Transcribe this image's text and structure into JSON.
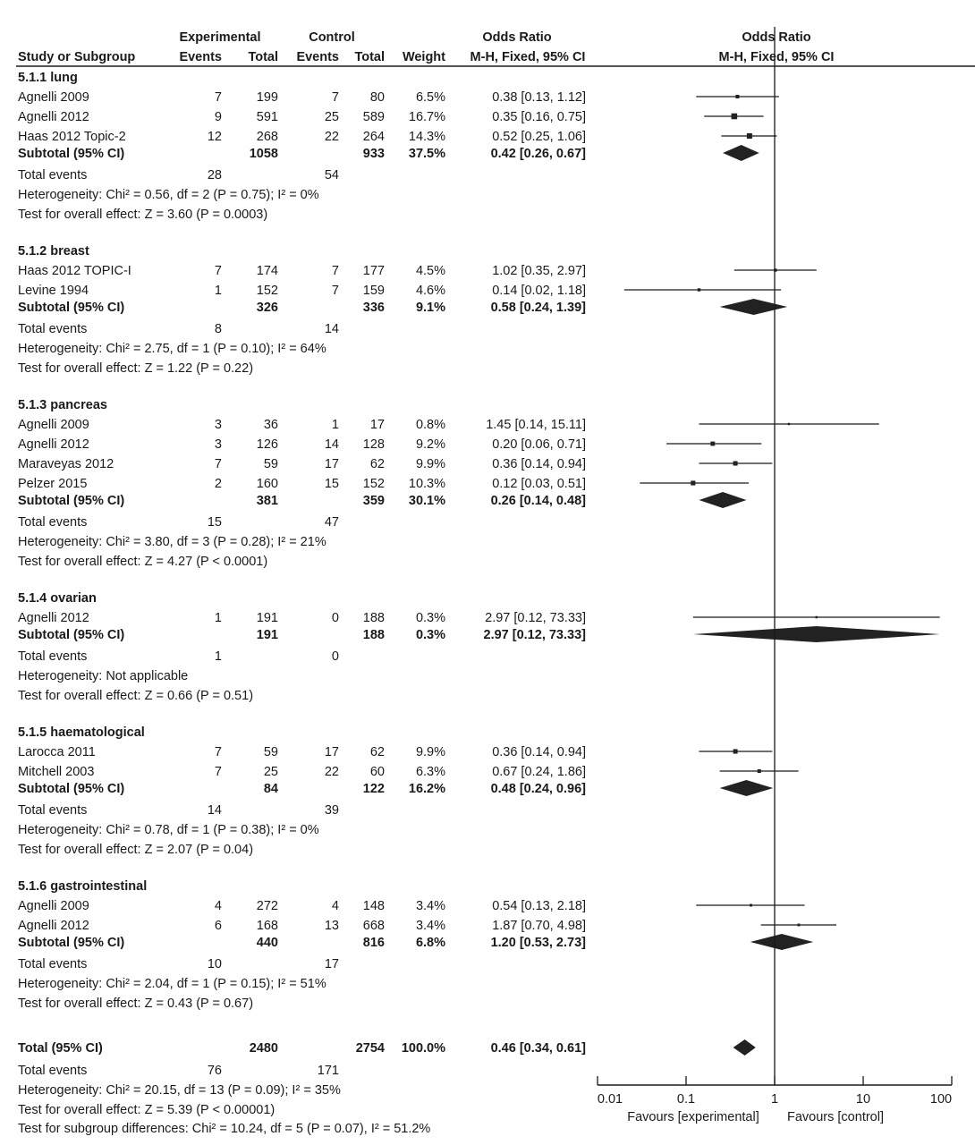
{
  "header": {
    "study_col": "Study or Subgroup",
    "experimental": "Experimental",
    "control": "Control",
    "events": "Events",
    "total": "Total",
    "weight": "Weight",
    "or_title": "Odds Ratio",
    "or_method": "M-H, Fixed, 95% CI",
    "plot_title": "Odds Ratio",
    "plot_method": "M-H, Fixed, 95% CI"
  },
  "chart_data": {
    "type": "forest",
    "x_scale": "log",
    "xlim": [
      0.01,
      100
    ],
    "x_ticks": [
      "0.01",
      "0.1",
      "1",
      "10",
      "100"
    ],
    "x_tick_values": [
      0.01,
      0.1,
      1,
      10,
      100
    ],
    "reference_line": 1,
    "favours_left": "Favours [experimental]",
    "favours_right": "Favours [control]",
    "groups": [
      {
        "title": "5.1.1 lung",
        "studies": [
          {
            "name": "Agnelli 2009",
            "exp_events": "7",
            "exp_total": "199",
            "ctl_events": "7",
            "ctl_total": "80",
            "weight": "6.5%",
            "or_text": "0.38 [0.13, 1.12]",
            "or": 0.38,
            "lo": 0.13,
            "hi": 1.12
          },
          {
            "name": "Agnelli 2012",
            "exp_events": "9",
            "exp_total": "591",
            "ctl_events": "25",
            "ctl_total": "589",
            "weight": "16.7%",
            "or_text": "0.35 [0.16, 0.75]",
            "or": 0.35,
            "lo": 0.16,
            "hi": 0.75
          },
          {
            "name": "Haas 2012 Topic-2",
            "exp_events": "12",
            "exp_total": "268",
            "ctl_events": "22",
            "ctl_total": "264",
            "weight": "14.3%",
            "or_text": "0.52 [0.25, 1.06]",
            "or": 0.52,
            "lo": 0.25,
            "hi": 1.06
          }
        ],
        "subtotal": {
          "label": "Subtotal (95% CI)",
          "exp_total": "1058",
          "ctl_total": "933",
          "weight": "37.5%",
          "or_text": "0.42 [0.26, 0.67]",
          "or": 0.42,
          "lo": 0.26,
          "hi": 0.67
        },
        "total_events": {
          "label": "Total events",
          "exp": "28",
          "ctl": "54"
        },
        "heterogeneity": "Heterogeneity: Chi² = 0.56, df = 2 (P = 0.75); I² = 0%",
        "overall_effect": "Test for overall effect: Z = 3.60 (P = 0.0003)"
      },
      {
        "title": "5.1.2 breast",
        "studies": [
          {
            "name": "Haas 2012 TOPIC-I",
            "exp_events": "7",
            "exp_total": "174",
            "ctl_events": "7",
            "ctl_total": "177",
            "weight": "4.5%",
            "or_text": "1.02 [0.35, 2.97]",
            "or": 1.02,
            "lo": 0.35,
            "hi": 2.97
          },
          {
            "name": "Levine 1994",
            "exp_events": "1",
            "exp_total": "152",
            "ctl_events": "7",
            "ctl_total": "159",
            "weight": "4.6%",
            "or_text": "0.14 [0.02, 1.18]",
            "or": 0.14,
            "lo": 0.02,
            "hi": 1.18
          }
        ],
        "subtotal": {
          "label": "Subtotal (95% CI)",
          "exp_total": "326",
          "ctl_total": "336",
          "weight": "9.1%",
          "or_text": "0.58 [0.24, 1.39]",
          "or": 0.58,
          "lo": 0.24,
          "hi": 1.39
        },
        "total_events": {
          "label": "Total events",
          "exp": "8",
          "ctl": "14"
        },
        "heterogeneity": "Heterogeneity: Chi² = 2.75, df = 1 (P = 0.10); I² = 64%",
        "overall_effect": "Test for overall effect: Z = 1.22 (P = 0.22)"
      },
      {
        "title": "5.1.3 pancreas",
        "studies": [
          {
            "name": "Agnelli 2009",
            "exp_events": "3",
            "exp_total": "36",
            "ctl_events": "1",
            "ctl_total": "17",
            "weight": "0.8%",
            "or_text": "1.45 [0.14, 15.11]",
            "or": 1.45,
            "lo": 0.14,
            "hi": 15.11
          },
          {
            "name": "Agnelli 2012",
            "exp_events": "3",
            "exp_total": "126",
            "ctl_events": "14",
            "ctl_total": "128",
            "weight": "9.2%",
            "or_text": "0.20 [0.06, 0.71]",
            "or": 0.2,
            "lo": 0.06,
            "hi": 0.71
          },
          {
            "name": "Maraveyas 2012",
            "exp_events": "7",
            "exp_total": "59",
            "ctl_events": "17",
            "ctl_total": "62",
            "weight": "9.9%",
            "or_text": "0.36 [0.14, 0.94]",
            "or": 0.36,
            "lo": 0.14,
            "hi": 0.94
          },
          {
            "name": "Pelzer 2015",
            "exp_events": "2",
            "exp_total": "160",
            "ctl_events": "15",
            "ctl_total": "152",
            "weight": "10.3%",
            "or_text": "0.12 [0.03, 0.51]",
            "or": 0.12,
            "lo": 0.03,
            "hi": 0.51
          }
        ],
        "subtotal": {
          "label": "Subtotal (95% CI)",
          "exp_total": "381",
          "ctl_total": "359",
          "weight": "30.1%",
          "or_text": "0.26 [0.14, 0.48]",
          "or": 0.26,
          "lo": 0.14,
          "hi": 0.48
        },
        "total_events": {
          "label": "Total events",
          "exp": "15",
          "ctl": "47"
        },
        "heterogeneity": "Heterogeneity: Chi² = 3.80, df = 3 (P = 0.28); I² = 21%",
        "overall_effect": "Test for overall effect: Z = 4.27 (P < 0.0001)"
      },
      {
        "title": "5.1.4 ovarian",
        "studies": [
          {
            "name": "Agnelli 2012",
            "exp_events": "1",
            "exp_total": "191",
            "ctl_events": "0",
            "ctl_total": "188",
            "weight": "0.3%",
            "or_text": "2.97 [0.12, 73.33]",
            "or": 2.97,
            "lo": 0.12,
            "hi": 73.33
          }
        ],
        "subtotal": {
          "label": "Subtotal (95% CI)",
          "exp_total": "191",
          "ctl_total": "188",
          "weight": "0.3%",
          "or_text": "2.97 [0.12, 73.33]",
          "or": 2.97,
          "lo": 0.12,
          "hi": 73.33
        },
        "total_events": {
          "label": "Total events",
          "exp": "1",
          "ctl": "0"
        },
        "heterogeneity": "Heterogeneity: Not applicable",
        "overall_effect": "Test for overall effect: Z = 0.66 (P = 0.51)"
      },
      {
        "title": "5.1.5 haematological",
        "studies": [
          {
            "name": "Larocca 2011",
            "exp_events": "7",
            "exp_total": "59",
            "ctl_events": "17",
            "ctl_total": "62",
            "weight": "9.9%",
            "or_text": "0.36 [0.14, 0.94]",
            "or": 0.36,
            "lo": 0.14,
            "hi": 0.94
          },
          {
            "name": "Mitchell 2003",
            "exp_events": "7",
            "exp_total": "25",
            "ctl_events": "22",
            "ctl_total": "60",
            "weight": "6.3%",
            "or_text": "0.67 [0.24, 1.86]",
            "or": 0.67,
            "lo": 0.24,
            "hi": 1.86
          }
        ],
        "subtotal": {
          "label": "Subtotal (95% CI)",
          "exp_total": "84",
          "ctl_total": "122",
          "weight": "16.2%",
          "or_text": "0.48 [0.24, 0.96]",
          "or": 0.48,
          "lo": 0.24,
          "hi": 0.96
        },
        "total_events": {
          "label": "Total events",
          "exp": "14",
          "ctl": "39"
        },
        "heterogeneity": "Heterogeneity: Chi² = 0.78, df = 1 (P = 0.38); I² = 0%",
        "overall_effect": "Test for overall effect: Z = 2.07 (P = 0.04)"
      },
      {
        "title": "5.1.6 gastrointestinal",
        "studies": [
          {
            "name": "Agnelli 2009",
            "exp_events": "4",
            "exp_total": "272",
            "ctl_events": "4",
            "ctl_total": "148",
            "weight": "3.4%",
            "or_text": "0.54 [0.13, 2.18]",
            "or": 0.54,
            "lo": 0.13,
            "hi": 2.18
          },
          {
            "name": "Agnelli 2012",
            "exp_events": "6",
            "exp_total": "168",
            "ctl_events": "13",
            "ctl_total": "668",
            "weight": "3.4%",
            "or_text": "1.87 [0.70, 4.98]",
            "or": 1.87,
            "lo": 0.7,
            "hi": 4.98
          }
        ],
        "subtotal": {
          "label": "Subtotal (95% CI)",
          "exp_total": "440",
          "ctl_total": "816",
          "weight": "6.8%",
          "or_text": "1.20 [0.53, 2.73]",
          "or": 1.2,
          "lo": 0.53,
          "hi": 2.73
        },
        "total_events": {
          "label": "Total events",
          "exp": "10",
          "ctl": "17"
        },
        "heterogeneity": "Heterogeneity: Chi² = 2.04, df = 1 (P = 0.15); I² = 51%",
        "overall_effect": "Test for overall effect: Z = 0.43 (P = 0.67)"
      }
    ],
    "overall": {
      "label": "Total (95% CI)",
      "exp_total": "2480",
      "ctl_total": "2754",
      "weight": "100.0%",
      "or_text": "0.46 [0.34, 0.61]",
      "or": 0.46,
      "lo": 0.34,
      "hi": 0.61,
      "total_events": {
        "label": "Total events",
        "exp": "76",
        "ctl": "171"
      },
      "heterogeneity": "Heterogeneity: Chi² = 20.15, df = 13 (P = 0.09); I² = 35%",
      "overall_effect": "Test for overall effect: Z = 5.39 (P < 0.00001)",
      "subgroup_differences": "Test for subgroup differences: Chi² = 10.24, df = 5 (P = 0.07), I² = 51.2%"
    }
  },
  "colors": {
    "ink": "#1a1a1a",
    "marker": "#222222"
  }
}
